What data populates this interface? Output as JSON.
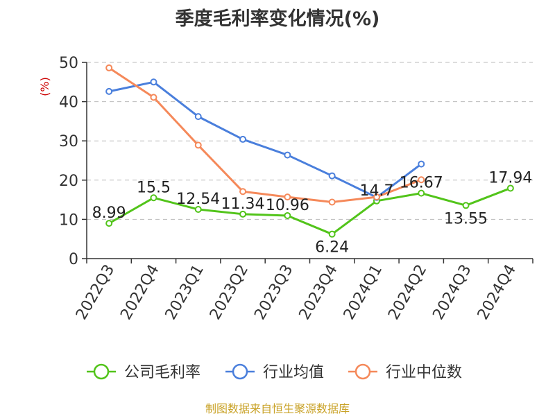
{
  "title": "季度毛利率变化情况(%)",
  "footer": "制图数据来自恒生聚源数据库",
  "chart_data": {
    "type": "line",
    "title": "季度毛利率变化情况(%)",
    "xlabel": "",
    "ylabel": "(%)",
    "ylim": [
      0,
      50
    ],
    "yticks": [
      0,
      10,
      20,
      30,
      40,
      50
    ],
    "grid": true,
    "legend_position": "bottom",
    "categories": [
      "2022Q3",
      "2022Q4",
      "2023Q1",
      "2023Q2",
      "2023Q3",
      "2023Q4",
      "2024Q1",
      "2024Q2",
      "2024Q3",
      "2024Q4"
    ],
    "series": [
      {
        "name": "公司毛利率",
        "color": "#52c41a",
        "values": [
          8.99,
          15.5,
          12.54,
          11.34,
          10.96,
          6.24,
          14.7,
          16.67,
          13.55,
          17.94
        ],
        "labels": [
          "8.99",
          "15.5",
          "12.54",
          "11.34",
          "10.96",
          "6.24",
          "14.7",
          "16.67",
          "13.55",
          "17.94"
        ]
      },
      {
        "name": "行业均值",
        "color": "#4a7fdc",
        "values": [
          42.6,
          45.0,
          36.2,
          30.4,
          26.4,
          21.1,
          15.6,
          24.1,
          null,
          null
        ]
      },
      {
        "name": "行业中位数",
        "color": "#f5895a",
        "values": [
          48.6,
          41.1,
          28.9,
          17.1,
          15.7,
          14.4,
          15.7,
          20.1,
          null,
          null
        ]
      }
    ]
  }
}
